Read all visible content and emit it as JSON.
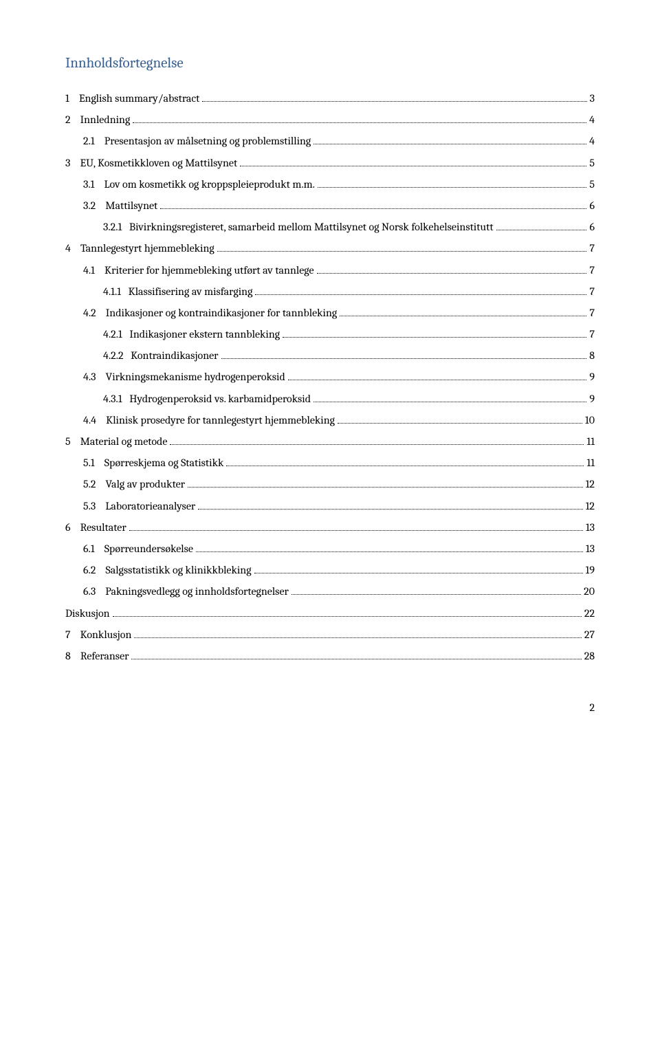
{
  "title": "Innholdsfortegnelse",
  "pageNumber": "2",
  "entries": [
    {
      "level": 1,
      "num": "1",
      "text": "English summary/abstract",
      "page": "3"
    },
    {
      "level": 1,
      "num": "2",
      "text": "Innledning",
      "page": "4"
    },
    {
      "level": 2,
      "num": "2.1",
      "text": "Presentasjon av målsetning og problemstilling",
      "page": "4"
    },
    {
      "level": 1,
      "num": "3",
      "text": "EU, Kosmetikkloven og Mattilsynet",
      "page": "5"
    },
    {
      "level": 2,
      "num": "3.1",
      "text": "Lov om kosmetikk og kroppspleieprodukt m.m.",
      "page": "5"
    },
    {
      "level": 2,
      "num": "3.2",
      "text": "Mattilsynet",
      "page": "6"
    },
    {
      "level": 3,
      "num": "3.2.1",
      "text": "Bivirkningsregisteret, samarbeid mellom Mattilsynet og Norsk folkehelseinstitutt",
      "page": "6"
    },
    {
      "level": 1,
      "num": "4",
      "text": "Tannlegestyrt hjemmebleking",
      "page": "7"
    },
    {
      "level": 2,
      "num": "4.1",
      "text": "Kriterier for hjemmebleking utført av tannlege",
      "page": "7"
    },
    {
      "level": 3,
      "num": "4.1.1",
      "text": "Klassifisering av misfarging",
      "page": "7"
    },
    {
      "level": 2,
      "num": "4.2",
      "text": "Indikasjoner og kontraindikasjoner for tannbleking",
      "page": "7"
    },
    {
      "level": 3,
      "num": "4.2.1",
      "text": "Indikasjoner ekstern tannbleking",
      "page": "7"
    },
    {
      "level": 3,
      "num": "4.2.2",
      "text": "Kontraindikasjoner",
      "page": "8"
    },
    {
      "level": 2,
      "num": "4.3",
      "text": "Virkningsmekanisme hydrogenperoksid",
      "page": "9"
    },
    {
      "level": 3,
      "num": "4.3.1",
      "text": "Hydrogenperoksid vs. karbamidperoksid",
      "page": "9"
    },
    {
      "level": 2,
      "num": "4.4",
      "text": "Klinisk prosedyre for tannlegestyrt hjemmebleking",
      "page": "10"
    },
    {
      "level": 1,
      "num": "5",
      "text": "Material og metode",
      "page": "11"
    },
    {
      "level": 2,
      "num": "5.1",
      "text": "Spørreskjema og Statistikk",
      "page": "11"
    },
    {
      "level": 2,
      "num": "5.2",
      "text": "Valg av produkter",
      "page": "12"
    },
    {
      "level": 2,
      "num": "5.3",
      "text": "Laboratorieanalyser",
      "page": "12"
    },
    {
      "level": 1,
      "num": "6",
      "text": "Resultater",
      "page": "13"
    },
    {
      "level": 2,
      "num": "6.1",
      "text": "Spørreundersøkelse",
      "page": "13"
    },
    {
      "level": 2,
      "num": "6.2",
      "text": "Salgsstatistikk og klinikkbleking",
      "page": "19"
    },
    {
      "level": 2,
      "num": "6.3",
      "text": "Pakningsvedlegg og innholdsfortegnelser",
      "page": "20"
    },
    {
      "level": 1,
      "num": "",
      "text": "Diskusjon",
      "page": "22"
    },
    {
      "level": 1,
      "num": "7",
      "text": "Konklusjon",
      "page": "27"
    },
    {
      "level": 1,
      "num": "8",
      "text": "Referanser",
      "page": "28"
    }
  ]
}
